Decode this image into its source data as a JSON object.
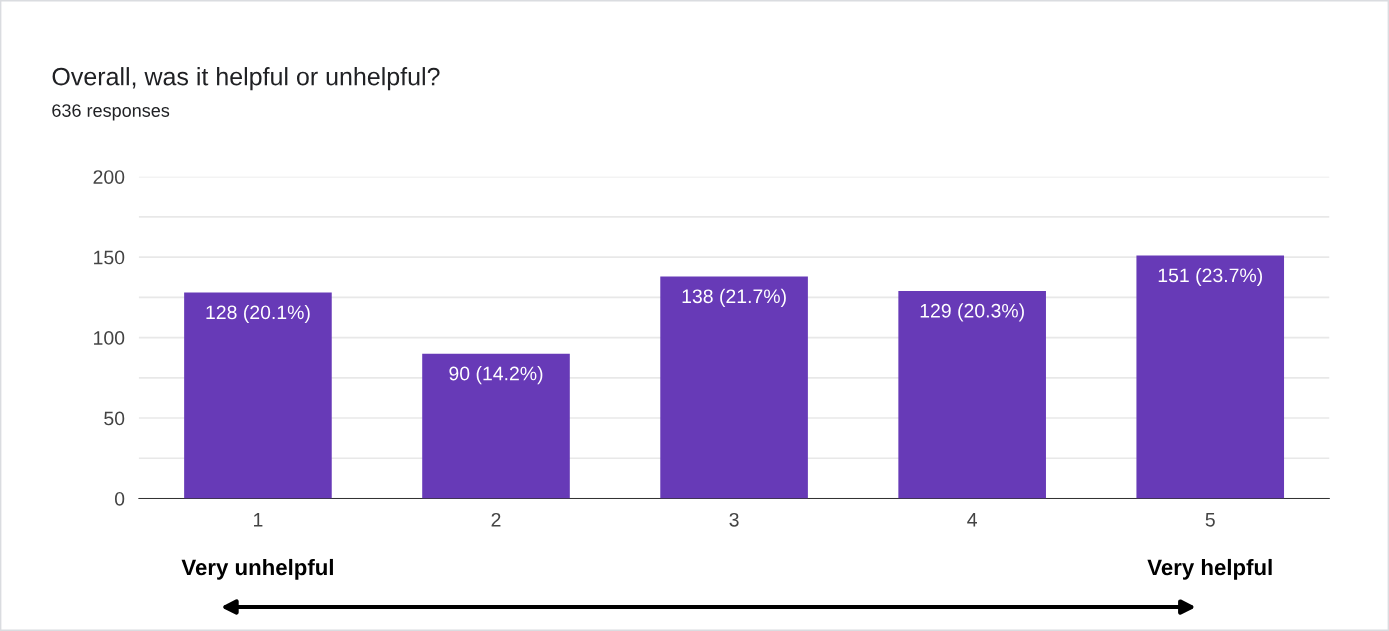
{
  "chart_data": {
    "type": "bar",
    "title": "Overall, was it helpful or unhelpful?",
    "subtitle": "636 responses",
    "categories": [
      "1",
      "2",
      "3",
      "4",
      "5"
    ],
    "values": [
      128,
      90,
      138,
      129,
      151
    ],
    "value_labels": [
      "128 (20.1%)",
      "90 (14.2%)",
      "138 (21.7%)",
      "129 (20.3%)",
      "151 (23.7%)"
    ],
    "color": "#673ab7",
    "ylim": [
      0,
      200
    ],
    "yticks": [
      0,
      {
        "value": 25,
        "label": null
      },
      50,
      {
        "value": 75,
        "label": null
      },
      100,
      {
        "value": 125,
        "label": null
      },
      150,
      {
        "value": 175,
        "label": null
      },
      200
    ],
    "grid": "y",
    "annotations": [
      "Very unhelpful",
      "Very helpful"
    ]
  }
}
